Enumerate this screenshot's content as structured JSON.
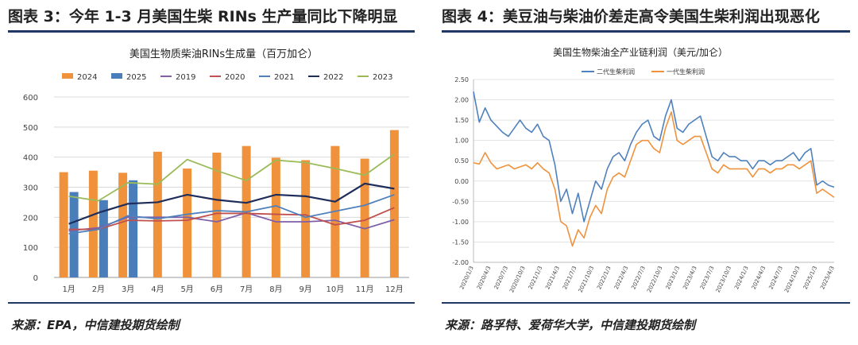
{
  "left": {
    "panel_title": "图表 3：今年 1-3 月美国生柴 RINs 生产量同比下降明显",
    "source": "来源：EPA，中信建投期货绘制"
  },
  "right": {
    "panel_title": "图表 4：美豆油与柴油价差走高令美国生柴利润出现恶化",
    "source": "来源：路孚特、爱荷华大学，中信建投期货绘制"
  },
  "chart_data": [
    {
      "type": "bar",
      "title": "美国生物质柴油RINs生成量（百万加仑）",
      "categories": [
        "1月",
        "2月",
        "3月",
        "4月",
        "5月",
        "6月",
        "7月",
        "8月",
        "9月",
        "10月",
        "11月",
        "12月"
      ],
      "ylim": [
        0,
        600
      ],
      "yticks": [
        0,
        100,
        200,
        300,
        400,
        500,
        600
      ],
      "legend_position": "top",
      "grid": true,
      "series": [
        {
          "name": "2024",
          "kind": "bar",
          "color": "#f0923b",
          "values": [
            350,
            355,
            348,
            418,
            362,
            415,
            437,
            398,
            390,
            437,
            395,
            490
          ]
        },
        {
          "name": "2025",
          "kind": "bar",
          "color": "#4a7ebb",
          "values": [
            284,
            257,
            323,
            null,
            null,
            null,
            null,
            null,
            null,
            null,
            null,
            null
          ]
        },
        {
          "name": "2019",
          "kind": "line",
          "color": "#7f5fa8",
          "values": [
            155,
            165,
            200,
            200,
            200,
            185,
            215,
            185,
            185,
            190,
            162,
            192
          ]
        },
        {
          "name": "2020",
          "kind": "line",
          "color": "#c0504d",
          "values": [
            160,
            160,
            190,
            188,
            190,
            213,
            213,
            210,
            208,
            175,
            190,
            232
          ]
        },
        {
          "name": "2021",
          "kind": "line",
          "color": "#4f81bd",
          "values": [
            145,
            160,
            205,
            195,
            210,
            222,
            218,
            238,
            200,
            220,
            240,
            275
          ]
        },
        {
          "name": "2022",
          "kind": "line",
          "color": "#1f2d5a",
          "values": [
            178,
            215,
            245,
            250,
            275,
            258,
            248,
            275,
            270,
            252,
            312,
            295
          ]
        },
        {
          "name": "2023",
          "kind": "line",
          "color": "#9bbb59",
          "values": [
            270,
            255,
            315,
            310,
            392,
            355,
            322,
            390,
            382,
            362,
            340,
            410
          ]
        }
      ]
    },
    {
      "type": "line",
      "title": "美国生物柴油全产业链利润（美元/加仑）",
      "ylim": [
        -2.0,
        2.5
      ],
      "yticks": [
        "2.50",
        "2.00",
        "1.50",
        "1.00",
        "0.50",
        "0.00",
        "-0.50",
        "-1.00",
        "-1.50",
        "-2.00"
      ],
      "x_tick_labels": [
        "2020/1/3",
        "2020/4/3",
        "2020/7/3",
        "2020/10/3",
        "2021/1/3",
        "2021/4/3",
        "2021/7/3",
        "2021/10/3",
        "2022/1/3",
        "2022/4/3",
        "2022/7/3",
        "2022/10/3",
        "2023/1/3",
        "2023/4/3",
        "2023/7/3",
        "2023/10/3",
        "2024/1/3",
        "2024/4/3",
        "2024/7/3",
        "2024/10/3",
        "2025/1/3",
        "2025/4/3"
      ],
      "legend_position": "top",
      "grid": true,
      "series": [
        {
          "name": "二代生柴利润",
          "color": "#4f81bd",
          "values": [
            2.2,
            1.45,
            1.8,
            1.5,
            1.35,
            1.2,
            1.1,
            1.3,
            1.5,
            1.3,
            1.2,
            1.4,
            1.1,
            1.0,
            0.4,
            -0.5,
            -0.2,
            -0.8,
            -0.3,
            -1.0,
            -0.5,
            0.0,
            -0.2,
            0.3,
            0.6,
            0.7,
            0.5,
            0.9,
            1.2,
            1.4,
            1.5,
            1.1,
            1.0,
            1.6,
            2.0,
            1.3,
            1.2,
            1.4,
            1.5,
            1.6,
            1.1,
            0.6,
            0.5,
            0.7,
            0.6,
            0.6,
            0.5,
            0.5,
            0.3,
            0.5,
            0.5,
            0.4,
            0.5,
            0.5,
            0.6,
            0.7,
            0.5,
            0.7,
            0.8,
            -0.1,
            0.0,
            -0.1,
            -0.15
          ]
        },
        {
          "name": "一代生柴利润",
          "color": "#f0923b",
          "values": [
            0.45,
            0.42,
            0.7,
            0.45,
            0.3,
            0.35,
            0.4,
            0.3,
            0.35,
            0.4,
            0.3,
            0.45,
            0.3,
            0.2,
            -0.2,
            -1.0,
            -1.1,
            -1.6,
            -1.2,
            -1.4,
            -0.9,
            -0.6,
            -0.8,
            -0.2,
            0.1,
            0.2,
            0.1,
            0.5,
            0.9,
            1.0,
            1.0,
            0.8,
            0.7,
            1.3,
            1.7,
            1.0,
            0.9,
            1.0,
            1.1,
            1.1,
            0.7,
            0.3,
            0.2,
            0.4,
            0.3,
            0.3,
            0.3,
            0.3,
            0.1,
            0.3,
            0.3,
            0.2,
            0.3,
            0.3,
            0.4,
            0.4,
            0.3,
            0.4,
            0.5,
            -0.3,
            -0.2,
            -0.3,
            -0.4
          ]
        }
      ]
    }
  ]
}
